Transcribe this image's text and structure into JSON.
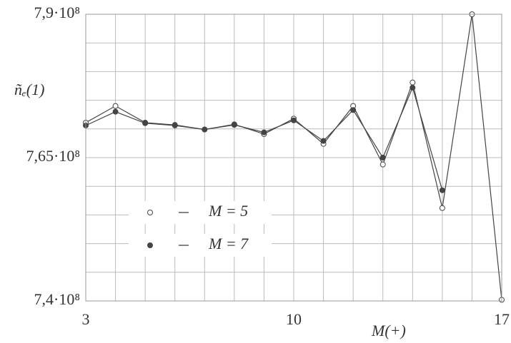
{
  "chart_data": {
    "type": "line",
    "xlabel": "M(+)",
    "ylabel": "ñₑ(1)",
    "x": [
      3,
      4,
      5,
      6,
      7,
      8,
      9,
      10,
      11,
      12,
      13,
      14,
      15,
      16,
      17
    ],
    "series": [
      {
        "name": "M = 5",
        "color": "#444444",
        "marker": "open",
        "values": [
          771100000,
          774000000,
          771100000,
          770700000,
          769900000,
          770800000,
          769100000,
          771800000,
          767400000,
          774000000,
          763800000,
          778100000,
          756200000,
          790000000,
          740200000
        ]
      },
      {
        "name": "M = 7",
        "color": "#444444",
        "marker": "filled",
        "values": [
          770600000,
          773000000,
          771000000,
          770600000,
          769900000,
          770700000,
          769400000,
          771500000,
          767900000,
          773300000,
          765000000,
          777200000,
          759300000,
          null,
          null
        ]
      }
    ],
    "xlim": [
      3,
      17
    ],
    "xticks": [
      3,
      10,
      17
    ],
    "ylim": [
      740000000,
      790000000
    ],
    "yticks": [
      {
        "value": 740000000,
        "label": "7,4·10⁸"
      },
      {
        "value": 765000000,
        "label": "7,65·10⁸"
      },
      {
        "value": 790000000,
        "label": "7,9·10⁸"
      }
    ],
    "grid": true
  }
}
